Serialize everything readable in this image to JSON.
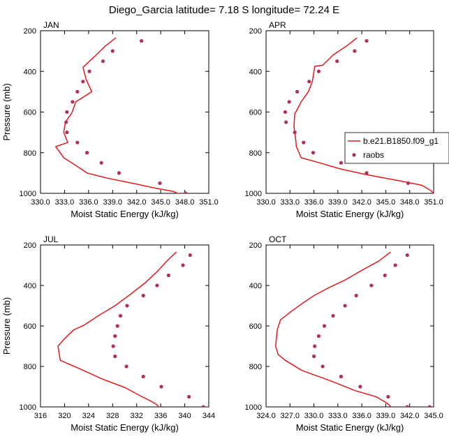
{
  "figure_title": "Diego_Garcia  latitude= 7.18 S longitude= 72.24 E",
  "chart_data": [
    {
      "type": "line",
      "panel_label": "JAN",
      "xlabel": "Moist Static Energy (kJ/kg)",
      "ylabel": "Pressure (mb)",
      "xlim": [
        330,
        351
      ],
      "xticks": [
        330,
        333,
        336,
        339,
        342,
        345,
        348,
        351
      ],
      "xtick_labels": [
        "330.0",
        "333.0",
        "336.0",
        "339.0",
        "342.0",
        "345.0",
        "348.0",
        "351.0"
      ],
      "ylim": [
        1000,
        200
      ],
      "yticks": [
        200,
        400,
        600,
        800,
        1000
      ],
      "ytick_labels": [
        "200",
        "400",
        "600",
        "800",
        "1000"
      ],
      "model": {
        "name": "b.e21.B1850.f09_g1",
        "color": "#e31a1c",
        "x": [
          339.4,
          338.1,
          336.8,
          335.3,
          335.7,
          336.4,
          334.4,
          333.9,
          333.1,
          332.9,
          333.4,
          331.9,
          332.9,
          334.3,
          335.8,
          338.3,
          341.4,
          344.4,
          346.5,
          347.4
        ],
        "y": [
          235,
          275,
          325,
          380,
          440,
          500,
          550,
          605,
          650,
          700,
          750,
          770,
          825,
          860,
          900,
          925,
          950,
          975,
          990,
          1005
        ]
      },
      "obs": {
        "name": "raobs",
        "color": "#b0305c",
        "x": [
          342.6,
          339.0,
          337.8,
          336.1,
          335.3,
          334.6,
          334.0,
          333.3,
          333.2,
          333.3,
          334.6,
          335.8,
          337.6,
          339.8,
          344.9,
          348.1
        ],
        "y": [
          250,
          300,
          350,
          400,
          450,
          500,
          550,
          600,
          650,
          700,
          750,
          800,
          850,
          900,
          950,
          1000
        ]
      }
    },
    {
      "type": "line",
      "panel_label": "APR",
      "xlabel": "Moist Static Energy (kJ/kg)",
      "ylabel": "",
      "xlim": [
        330,
        351
      ],
      "xticks": [
        330,
        333,
        336,
        339,
        342,
        345,
        348,
        351
      ],
      "xtick_labels": [
        "330.0",
        "333.0",
        "336.0",
        "339.0",
        "342.0",
        "345.0",
        "348.0",
        "351.0"
      ],
      "ylim": [
        1000,
        200
      ],
      "yticks": [
        200,
        400,
        600,
        800,
        1000
      ],
      "ytick_labels": [
        "200",
        "400",
        "600",
        "800",
        "1000"
      ],
      "model": {
        "name": "b.e21.B1850.f09_g1",
        "color": "#e31a1c",
        "x": [
          341.4,
          340.1,
          338.4,
          337.1,
          336.1,
          335.8,
          335.3,
          334.4,
          333.6,
          333.5,
          333.7,
          333.8,
          334.4,
          336.7,
          339.3,
          342.8,
          346.3,
          349.5,
          350.6,
          351.0
        ],
        "y": [
          235,
          275,
          320,
          370,
          375,
          450,
          500,
          550,
          610,
          670,
          730,
          770,
          825,
          850,
          880,
          910,
          935,
          960,
          985,
          1000
        ]
      },
      "obs": {
        "name": "raobs",
        "color": "#b0305c",
        "x": [
          342.6,
          341.1,
          338.9,
          336.6,
          335.4,
          333.9,
          332.9,
          332.4,
          332.5,
          333.6,
          334.7,
          335.9,
          339.4,
          342.6,
          347.8,
          351.0
        ],
        "y": [
          250,
          300,
          350,
          400,
          450,
          500,
          550,
          600,
          650,
          700,
          750,
          800,
          850,
          900,
          950,
          1000
        ]
      }
    },
    {
      "type": "line",
      "panel_label": "JUL",
      "xlabel": "Moist Static Energy (kJ/kg)",
      "ylabel": "Pressure (mb)",
      "xlim": [
        316,
        344
      ],
      "xticks": [
        316,
        320,
        324,
        328,
        332,
        336,
        340,
        344
      ],
      "xtick_labels": [
        "316",
        "320",
        "324",
        "328",
        "332",
        "336",
        "340",
        "344"
      ],
      "ylim": [
        1000,
        200
      ],
      "yticks": [
        200,
        400,
        600,
        800,
        1000
      ],
      "ytick_labels": [
        "200",
        "400",
        "600",
        "800",
        "1000"
      ],
      "model": {
        "name": "b.e21.B1850.f09_g1",
        "color": "#e31a1c",
        "x": [
          338.6,
          337.0,
          335.3,
          333.5,
          330.9,
          328.4,
          325.6,
          323.3,
          321.5,
          320.1,
          318.9,
          319.3,
          322.4,
          326.1,
          330.1,
          332.9,
          334.3,
          335.4,
          335.8
        ],
        "y": [
          235,
          280,
          335,
          385,
          445,
          500,
          550,
          595,
          620,
          660,
          700,
          770,
          810,
          860,
          905,
          950,
          970,
          990,
          1005
        ]
      },
      "obs": {
        "name": "raobs",
        "color": "#b0305c",
        "x": [
          340.9,
          339.7,
          337.3,
          335.4,
          333.1,
          330.4,
          329.3,
          328.8,
          328.4,
          328.1,
          328.4,
          330.3,
          333.1,
          336.1,
          340.7,
          343.1
        ],
        "y": [
          250,
          300,
          350,
          400,
          450,
          500,
          550,
          600,
          650,
          700,
          750,
          800,
          850,
          900,
          950,
          1000
        ]
      }
    },
    {
      "type": "line",
      "panel_label": "OCT",
      "xlabel": "Moist Static Energy (kJ/kg)",
      "ylabel": "",
      "xlim": [
        324,
        345
      ],
      "xticks": [
        324,
        327,
        330,
        333,
        336,
        339,
        342,
        345
      ],
      "xtick_labels": [
        "324.0",
        "327.0",
        "330.0",
        "333.0",
        "336.0",
        "339.0",
        "342.0",
        "345.0"
      ],
      "ylim": [
        1000,
        200
      ],
      "yticks": [
        200,
        400,
        600,
        800,
        1000
      ],
      "ytick_labels": [
        "200",
        "400",
        "600",
        "800",
        "1000"
      ],
      "model": {
        "name": "b.e21.B1850.f09_g1",
        "color": "#e31a1c",
        "x": [
          339.6,
          338.1,
          336.0,
          333.8,
          331.9,
          330.0,
          328.5,
          327.1,
          325.8,
          325.4,
          325.2,
          325.5,
          326.4,
          328.5,
          332.0,
          335.2,
          337.8,
          339.1,
          339.8
        ],
        "y": [
          235,
          280,
          325,
          375,
          410,
          450,
          490,
          530,
          570,
          620,
          700,
          740,
          770,
          820,
          870,
          920,
          950,
          980,
          1005
        ]
      },
      "obs": {
        "name": "raobs",
        "color": "#b0305c",
        "x": [
          341.7,
          340.2,
          338.9,
          337.2,
          335.3,
          333.9,
          332.4,
          331.3,
          330.6,
          330.1,
          330.0,
          331.1,
          333.4,
          335.8,
          339.3,
          341.7,
          344.5
        ],
        "y": [
          250,
          300,
          350,
          400,
          450,
          500,
          550,
          600,
          650,
          700,
          750,
          800,
          850,
          900,
          950,
          1000,
          1000
        ]
      }
    }
  ],
  "legend": {
    "entries": [
      "b.e21.B1850.f09_g1",
      "raobs"
    ],
    "placement": "right of APR panel"
  }
}
